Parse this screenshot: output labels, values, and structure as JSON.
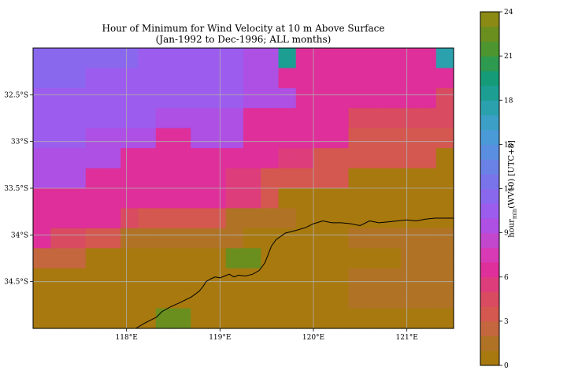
{
  "title_line1": "Hour of Minimum for Wind Velocity at 10 m Above Surface",
  "title_line2": "(Jan-1992 to Dec-1996; ALL months)",
  "colorbar_label": "hour_min(WV10) [UTC+8]",
  "chart_data": {
    "type": "heatmap",
    "title": "Hour of Minimum for Wind Velocity at 10 m Above Surface",
    "subtitle": "(Jan-1992 to Dec-1996; ALL months)",
    "colorbar": {
      "label": "hour_min(WV10) [UTC+8]",
      "range": [
        0,
        24
      ],
      "ticks": [
        0,
        3,
        6,
        9,
        12,
        15,
        18,
        21,
        24
      ],
      "tick_labels": [
        "0",
        "3",
        "6",
        "9",
        "12",
        "15",
        "18",
        "21",
        "24"
      ],
      "colors": [
        "#a8790f",
        "#b07325",
        "#c4673e",
        "#d4584f",
        "#d94b61",
        "#de3d7c",
        "#de2f9a",
        "#d83ab6",
        "#c247cc",
        "#ad50e3",
        "#9c5cee",
        "#8a68ee",
        "#7a74ea",
        "#6a82e6",
        "#5a8ee0",
        "#4a9ad8",
        "#3c9fc6",
        "#2ba1ae",
        "#1d9e93",
        "#169b78",
        "#2e9a4f",
        "#4d962f",
        "#6a8f1f",
        "#8a8a15"
      ]
    },
    "x_axis": {
      "range": [
        117.0,
        121.5
      ],
      "ticks": [
        118,
        119,
        120,
        121
      ],
      "tick_labels": [
        "118°E",
        "119°E",
        "120°E",
        "121°E"
      ]
    },
    "y_axis": {
      "range": [
        -35.0,
        -32.0
      ],
      "ticks": [
        -32.5,
        -33.0,
        -33.5,
        -34.0,
        -34.5
      ],
      "tick_labels": [
        "32.5°S",
        "33°S",
        "33.5°S",
        "34°S",
        "34.5°S"
      ]
    },
    "grid": true,
    "grid_x": [
      117.0,
      117.25,
      117.5,
      117.75,
      118.0,
      118.25,
      118.5,
      118.75,
      119.0,
      119.25,
      119.5,
      119.75,
      120.0,
      120.25,
      120.5,
      120.75,
      121.0,
      121.25,
      121.5
    ],
    "grid_y": [
      -32.0,
      -32.25,
      -32.5,
      -32.75,
      -33.0,
      -33.25,
      -33.5,
      -33.75,
      -34.0,
      -34.25,
      -34.5,
      -34.75,
      -35.0
    ],
    "values": [
      [
        11,
        11,
        11,
        11,
        11,
        11,
        10,
        10,
        10,
        10,
        10,
        10,
        9,
        9,
        18,
        6,
        6,
        6,
        6,
        6,
        6,
        6,
        6,
        17
      ],
      [
        11,
        11,
        11,
        10,
        10,
        10,
        10,
        10,
        10,
        10,
        10,
        10,
        9,
        9,
        6,
        6,
        6,
        6,
        6,
        6,
        6,
        6,
        6,
        6
      ],
      [
        10,
        10,
        10,
        10,
        10,
        10,
        10,
        10,
        10,
        10,
        10,
        10,
        9,
        9,
        9,
        6,
        6,
        6,
        6,
        6,
        6,
        6,
        6,
        4
      ],
      [
        10,
        10,
        10,
        10,
        10,
        10,
        10,
        9,
        9,
        9,
        9,
        9,
        6,
        6,
        6,
        6,
        6,
        6,
        4,
        4,
        4,
        4,
        4,
        4
      ],
      [
        10,
        10,
        10,
        9,
        9,
        9,
        9,
        6,
        6,
        9,
        9,
        9,
        6,
        6,
        6,
        6,
        6,
        6,
        3,
        3,
        3,
        3,
        3,
        3
      ],
      [
        9,
        9,
        9,
        9,
        9,
        6,
        6,
        6,
        6,
        6,
        6,
        6,
        6,
        6,
        5,
        5,
        3,
        3,
        3,
        3,
        3,
        3,
        3,
        0
      ],
      [
        9,
        9,
        9,
        6,
        6,
        6,
        6,
        6,
        6,
        6,
        6,
        5,
        5,
        3,
        3,
        3,
        3,
        3,
        0,
        0,
        0,
        0,
        0,
        0
      ],
      [
        6,
        6,
        6,
        6,
        6,
        6,
        6,
        6,
        6,
        6,
        6,
        5,
        5,
        3,
        0,
        0,
        0,
        0,
        0,
        0,
        0,
        0,
        0,
        0
      ],
      [
        6,
        6,
        6,
        6,
        6,
        4,
        3,
        3,
        3,
        3,
        3,
        1,
        1,
        1,
        1,
        0,
        0,
        0,
        0,
        0,
        0,
        0,
        0,
        0
      ],
      [
        6,
        4,
        4,
        3,
        3,
        1,
        1,
        1,
        1,
        1,
        1,
        1,
        0,
        0,
        0,
        0,
        0,
        0,
        1,
        1,
        1,
        1,
        1,
        1
      ],
      [
        2,
        2,
        2,
        0,
        0,
        0,
        0,
        0,
        0,
        0,
        0,
        22,
        22,
        0,
        0,
        0,
        0,
        0,
        0,
        0,
        0,
        1,
        1,
        1
      ],
      [
        0,
        0,
        0,
        0,
        0,
        0,
        0,
        0,
        0,
        0,
        0,
        0,
        0,
        0,
        0,
        0,
        0,
        0,
        1,
        1,
        1,
        1,
        1,
        1
      ],
      [
        0,
        0,
        0,
        0,
        0,
        0,
        0,
        0,
        0,
        0,
        0,
        0,
        0,
        0,
        0,
        0,
        0,
        0,
        1,
        1,
        1,
        1,
        1,
        1
      ],
      [
        0,
        0,
        0,
        0,
        0,
        0,
        0,
        22,
        22,
        0,
        0,
        0,
        0,
        0,
        0,
        0,
        0,
        0,
        0,
        0,
        0,
        0,
        0,
        0
      ]
    ],
    "coastline_lonlat": [
      [
        118.1,
        -35.0
      ],
      [
        118.2,
        -34.94
      ],
      [
        118.32,
        -34.88
      ],
      [
        118.38,
        -34.82
      ],
      [
        118.47,
        -34.77
      ],
      [
        118.58,
        -34.72
      ],
      [
        118.7,
        -34.66
      ],
      [
        118.78,
        -34.6
      ],
      [
        118.82,
        -34.55
      ],
      [
        118.85,
        -34.5
      ],
      [
        118.9,
        -34.47
      ],
      [
        118.95,
        -34.45
      ],
      [
        119.0,
        -34.46
      ],
      [
        119.05,
        -34.44
      ],
      [
        119.1,
        -34.42
      ],
      [
        119.15,
        -34.45
      ],
      [
        119.2,
        -34.43
      ],
      [
        119.27,
        -34.44
      ],
      [
        119.35,
        -34.42
      ],
      [
        119.42,
        -34.38
      ],
      [
        119.48,
        -34.3
      ],
      [
        119.52,
        -34.2
      ],
      [
        119.55,
        -34.12
      ],
      [
        119.6,
        -34.05
      ],
      [
        119.7,
        -33.98
      ],
      [
        119.82,
        -33.95
      ],
      [
        119.92,
        -33.92
      ],
      [
        120.0,
        -33.88
      ],
      [
        120.1,
        -33.85
      ],
      [
        120.2,
        -33.87
      ],
      [
        120.3,
        -33.87
      ],
      [
        120.4,
        -33.88
      ],
      [
        120.5,
        -33.9
      ],
      [
        120.6,
        -33.85
      ],
      [
        120.7,
        -33.87
      ],
      [
        120.8,
        -33.86
      ],
      [
        120.9,
        -33.85
      ],
      [
        121.0,
        -33.84
      ],
      [
        121.1,
        -33.85
      ],
      [
        121.2,
        -33.83
      ],
      [
        121.3,
        -33.82
      ],
      [
        121.4,
        -33.82
      ],
      [
        121.5,
        -33.82
      ]
    ]
  }
}
